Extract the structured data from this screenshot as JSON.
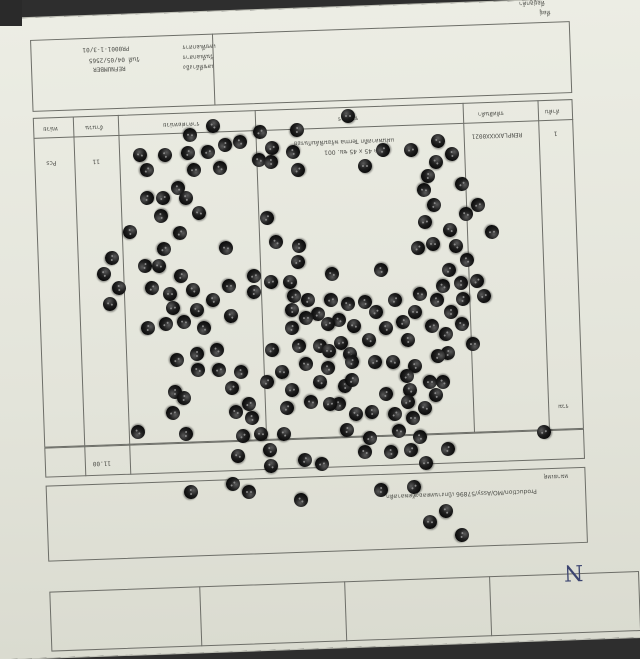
{
  "photo": {
    "subject": "",
    "background_color": "#2e2e2e",
    "paper_color": "#e6e7dd",
    "bead_color": "#111111"
  },
  "document": {
    "header_lines": [
      "ที่อยู่ลูกค้า",
      "ที่อยู่"
    ],
    "supplier_block": [
      "เลขที่เอกสาร",
      "วันที่เอกสาร",
      "เลขที่อ้างอิง"
    ],
    "supplier_values": [
      "PR0001-1-3/01",
      "วันที่ 04/05/2565",
      "REFNUMBER"
    ],
    "table_headers": {
      "item_no": "ลำดับ",
      "product_code": "รหัสสินค้า",
      "description": "รายการ",
      "unit_price": "ราคาต่อหน่วย",
      "quantity": "จำนวน",
      "unit": "หน่วย"
    },
    "row": {
      "item_no": "1",
      "product_code": "RENPLAXXXX0021",
      "description": "แผ่นพลาสติก Terma พร้อมฟิล์มกันรอย",
      "description_line2": "ขนาด 45 x 45 ซม. 001",
      "quantity": "11",
      "unit": "Pcs"
    },
    "total_label": "รวม",
    "total_value": "11.00",
    "remarks_label": "หมายเหตุ",
    "remarks_text": "Production/MO/Assy/57896 เบิกงานทดลองตัดพลาสติก",
    "handwritten_initial": "N"
  }
}
